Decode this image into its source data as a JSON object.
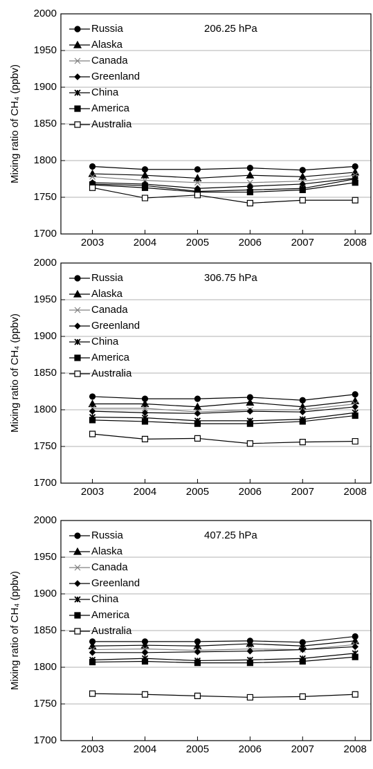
{
  "chart_data": [
    {
      "type": "line",
      "annotation": "206.25 hPa",
      "y_label": "Mixing ratio of CH₄ (ppbv)",
      "x": [
        2003,
        2004,
        2005,
        2006,
        2007,
        2008
      ],
      "xlim": [
        2002.4,
        2008.3
      ],
      "xticks": [
        2003,
        2004,
        2005,
        2006,
        2007,
        2008
      ],
      "ylim": [
        1700,
        2000
      ],
      "yticks": [
        1700,
        1750,
        1800,
        1850,
        1900,
        1950,
        2000
      ],
      "grid": true,
      "legend": "upper-left",
      "series": [
        {
          "name": "Russia",
          "color": "#000000",
          "marker": "circle",
          "values": [
            1792,
            1788,
            1788,
            1790,
            1787,
            1792
          ]
        },
        {
          "name": "Alaska",
          "color": "#000000",
          "marker": "triangle",
          "values": [
            1782,
            1780,
            1776,
            1780,
            1778,
            1784
          ]
        },
        {
          "name": "Canada",
          "color": "#808080",
          "marker": "x",
          "values": [
            1778,
            1773,
            1770,
            1770,
            1772,
            1780
          ]
        },
        {
          "name": "Greenland",
          "color": "#000000",
          "marker": "diamond",
          "values": [
            1770,
            1768,
            1762,
            1765,
            1768,
            1776
          ]
        },
        {
          "name": "China",
          "color": "#000000",
          "marker": "star",
          "values": [
            1768,
            1766,
            1758,
            1760,
            1762,
            1775
          ]
        },
        {
          "name": "America",
          "color": "#000000",
          "marker": "square",
          "values": [
            1767,
            1763,
            1757,
            1757,
            1760,
            1770
          ]
        },
        {
          "name": "Australia",
          "color": "#000000",
          "marker": "open-square",
          "values": [
            1763,
            1749,
            1753,
            1742,
            1746,
            1746
          ]
        }
      ]
    },
    {
      "type": "line",
      "annotation": "306.75 hPa",
      "y_label": "Mixing ratio of CH₄ (ppbv)",
      "x": [
        2003,
        2004,
        2005,
        2006,
        2007,
        2008
      ],
      "xlim": [
        2002.4,
        2008.3
      ],
      "xticks": [
        2003,
        2004,
        2005,
        2006,
        2007,
        2008
      ],
      "ylim": [
        1700,
        2000
      ],
      "yticks": [
        1700,
        1750,
        1800,
        1850,
        1900,
        1950,
        2000
      ],
      "grid": true,
      "legend": "upper-left",
      "series": [
        {
          "name": "Russia",
          "color": "#000000",
          "marker": "circle",
          "values": [
            1818,
            1815,
            1815,
            1817,
            1813,
            1821
          ]
        },
        {
          "name": "Alaska",
          "color": "#000000",
          "marker": "triangle",
          "values": [
            1808,
            1808,
            1804,
            1810,
            1804,
            1812
          ]
        },
        {
          "name": "Canada",
          "color": "#808080",
          "marker": "x",
          "values": [
            1802,
            1802,
            1797,
            1800,
            1800,
            1808
          ]
        },
        {
          "name": "Greenland",
          "color": "#000000",
          "marker": "diamond",
          "values": [
            1798,
            1796,
            1795,
            1798,
            1797,
            1804
          ]
        },
        {
          "name": "China",
          "color": "#000000",
          "marker": "star",
          "values": [
            1790,
            1789,
            1785,
            1785,
            1787,
            1796
          ]
        },
        {
          "name": "America",
          "color": "#000000",
          "marker": "square",
          "values": [
            1786,
            1784,
            1781,
            1781,
            1784,
            1792
          ]
        },
        {
          "name": "Australia",
          "color": "#000000",
          "marker": "open-square",
          "values": [
            1767,
            1760,
            1761,
            1754,
            1756,
            1757
          ]
        }
      ]
    },
    {
      "type": "line",
      "annotation": "407.25 hPa",
      "y_label": "Mixing ratio of CH₄ (ppbv)",
      "x": [
        2003,
        2004,
        2005,
        2006,
        2007,
        2008
      ],
      "xlim": [
        2002.4,
        2008.3
      ],
      "xticks": [
        2003,
        2004,
        2005,
        2006,
        2007,
        2008
      ],
      "ylim": [
        1700,
        2000
      ],
      "yticks": [
        1700,
        1750,
        1800,
        1850,
        1900,
        1950,
        2000
      ],
      "grid": true,
      "legend": "upper-left",
      "series": [
        {
          "name": "Russia",
          "color": "#000000",
          "marker": "circle",
          "values": [
            1835,
            1835,
            1835,
            1836,
            1834,
            1842
          ]
        },
        {
          "name": "Alaska",
          "color": "#000000",
          "marker": "triangle",
          "values": [
            1829,
            1830,
            1829,
            1832,
            1829,
            1836
          ]
        },
        {
          "name": "Canada",
          "color": "#808080",
          "marker": "x",
          "values": [
            1824,
            1825,
            1823,
            1825,
            1824,
            1831
          ]
        },
        {
          "name": "Greenland",
          "color": "#000000",
          "marker": "diamond",
          "values": [
            1820,
            1820,
            1821,
            1822,
            1824,
            1828
          ]
        },
        {
          "name": "China",
          "color": "#000000",
          "marker": "star",
          "values": [
            1810,
            1812,
            1809,
            1810,
            1812,
            1819
          ]
        },
        {
          "name": "America",
          "color": "#000000",
          "marker": "square",
          "values": [
            1807,
            1808,
            1806,
            1806,
            1808,
            1814
          ]
        },
        {
          "name": "Australia",
          "color": "#000000",
          "marker": "open-square",
          "values": [
            1764,
            1763,
            1761,
            1759,
            1760,
            1763
          ]
        }
      ]
    }
  ]
}
